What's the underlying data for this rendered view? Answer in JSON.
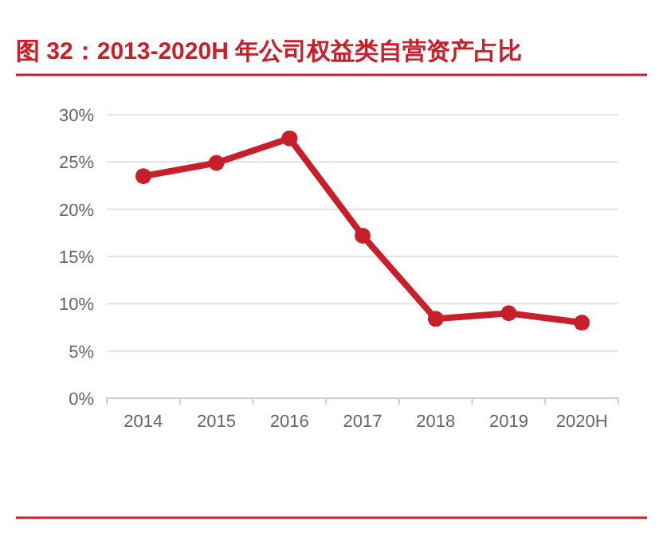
{
  "chart_data": {
    "type": "line",
    "title": "图 32：2013-2020H 年公司权益类自营资产占比",
    "categories": [
      "2014",
      "2015",
      "2016",
      "2017",
      "2018",
      "2019",
      "2020H"
    ],
    "series": [
      {
        "color": "#c8202a",
        "values": [
          23.5,
          24.9,
          27.5,
          17.2,
          8.4,
          9.0,
          8.0
        ]
      }
    ],
    "ylim": [
      0,
      30
    ],
    "yticks": [
      {
        "value": 0,
        "label": "0%"
      },
      {
        "value": 5,
        "label": "5%"
      },
      {
        "value": 10,
        "label": "10%"
      },
      {
        "value": 15,
        "label": "15%"
      },
      {
        "value": 20,
        "label": "20%"
      },
      {
        "value": 25,
        "label": "25%"
      },
      {
        "value": 30,
        "label": "30%"
      }
    ],
    "grid": "y",
    "marker": "circle"
  }
}
